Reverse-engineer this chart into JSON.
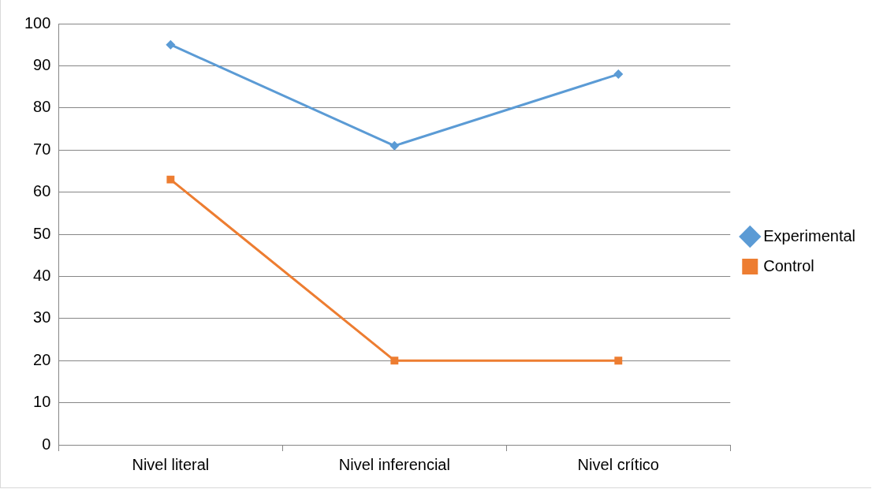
{
  "chart_data": {
    "type": "line",
    "categories": [
      "Nivel literal",
      "Nivel inferencial",
      "Nivel crítico"
    ],
    "series": [
      {
        "name": "Experimental",
        "color": "#5b9bd5",
        "values": [
          95,
          71,
          88
        ],
        "marker": "diamond"
      },
      {
        "name": "Control",
        "color": "#ed7d31",
        "values": [
          63,
          20,
          20
        ],
        "marker": "square"
      }
    ],
    "ylim": [
      0,
      100
    ],
    "yticks": [
      0,
      10,
      20,
      30,
      40,
      50,
      60,
      70,
      80,
      90,
      100
    ],
    "grid": "y",
    "legend": "right",
    "line_style": "solid"
  }
}
